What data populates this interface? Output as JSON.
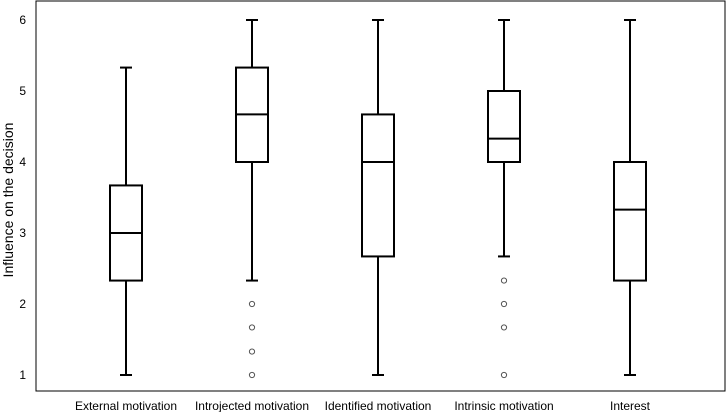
{
  "chart_data": {
    "type": "boxplot",
    "xlabel": "",
    "ylabel": "Influence on the decision",
    "ylim": [
      1,
      6
    ],
    "yticks": [
      1,
      2,
      3,
      4,
      5,
      6
    ],
    "grid": false,
    "legend": "none",
    "categories": [
      "External motivation",
      "Introjected motivation",
      "Identified motivation",
      "Intrinsic motivation",
      "Interest"
    ],
    "boxes": [
      {
        "category": "External motivation",
        "whisker_low": 1,
        "q1": 2.33,
        "median": 3,
        "q3": 3.67,
        "whisker_high": 5.33,
        "outliers": []
      },
      {
        "category": "Introjected motivation",
        "whisker_low": 2.33,
        "q1": 4,
        "median": 4.67,
        "q3": 5.33,
        "whisker_high": 6,
        "outliers": [
          2,
          1.67,
          1.33,
          1
        ]
      },
      {
        "category": "Identified motivation",
        "whisker_low": 1,
        "q1": 2.67,
        "median": 4,
        "q3": 4.67,
        "whisker_high": 6,
        "outliers": []
      },
      {
        "category": "Intrinsic motivation",
        "whisker_low": 2.67,
        "q1": 4,
        "median": 4.33,
        "q3": 5,
        "whisker_high": 6,
        "outliers": [
          2.33,
          2,
          1.67,
          1
        ]
      },
      {
        "category": "Interest",
        "whisker_low": 1,
        "q1": 2.33,
        "median": 3.33,
        "q3": 4,
        "whisker_high": 6,
        "outliers": []
      }
    ]
  }
}
